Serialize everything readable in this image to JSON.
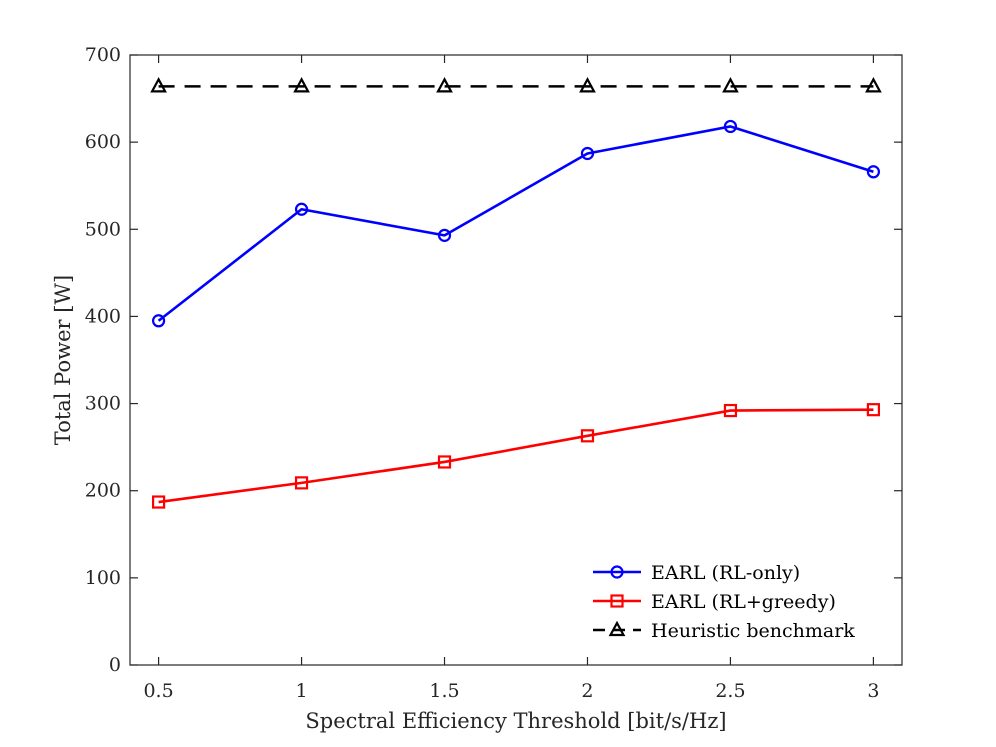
{
  "chart_data": {
    "type": "line",
    "title": "",
    "xlabel": "Spectral Efficiency Threshold [bit/s/Hz]",
    "ylabel": "Total Power [W]",
    "x": [
      0.5,
      1,
      1.5,
      2,
      2.5,
      3
    ],
    "xlim": [
      0.4,
      3.1
    ],
    "ylim": [
      0,
      700
    ],
    "xticks": [
      "0.5",
      "1",
      "1.5",
      "2",
      "2.5",
      "3"
    ],
    "xtick_values": [
      0.5,
      1,
      1.5,
      2,
      2.5,
      3
    ],
    "yticks": [
      "0",
      "100",
      "200",
      "300",
      "400",
      "500",
      "600",
      "700"
    ],
    "ytick_values": [
      0,
      100,
      200,
      300,
      400,
      500,
      600,
      700
    ],
    "grid": false,
    "legend_position": "bottom-right",
    "series": [
      {
        "name": "EARL (RL-only)",
        "color": "#0000ff",
        "marker": "circle",
        "dash": "solid",
        "values": [
          395,
          523,
          493,
          587,
          618,
          566
        ]
      },
      {
        "name": "EARL (RL+greedy)",
        "color": "#ff0000",
        "marker": "square",
        "dash": "solid",
        "values": [
          187,
          209,
          233,
          263,
          292,
          293
        ]
      },
      {
        "name": "Heuristic benchmark",
        "color": "#000000",
        "marker": "triangle",
        "dash": "dashed",
        "values": [
          664,
          664,
          664,
          664,
          664,
          664
        ]
      }
    ]
  }
}
